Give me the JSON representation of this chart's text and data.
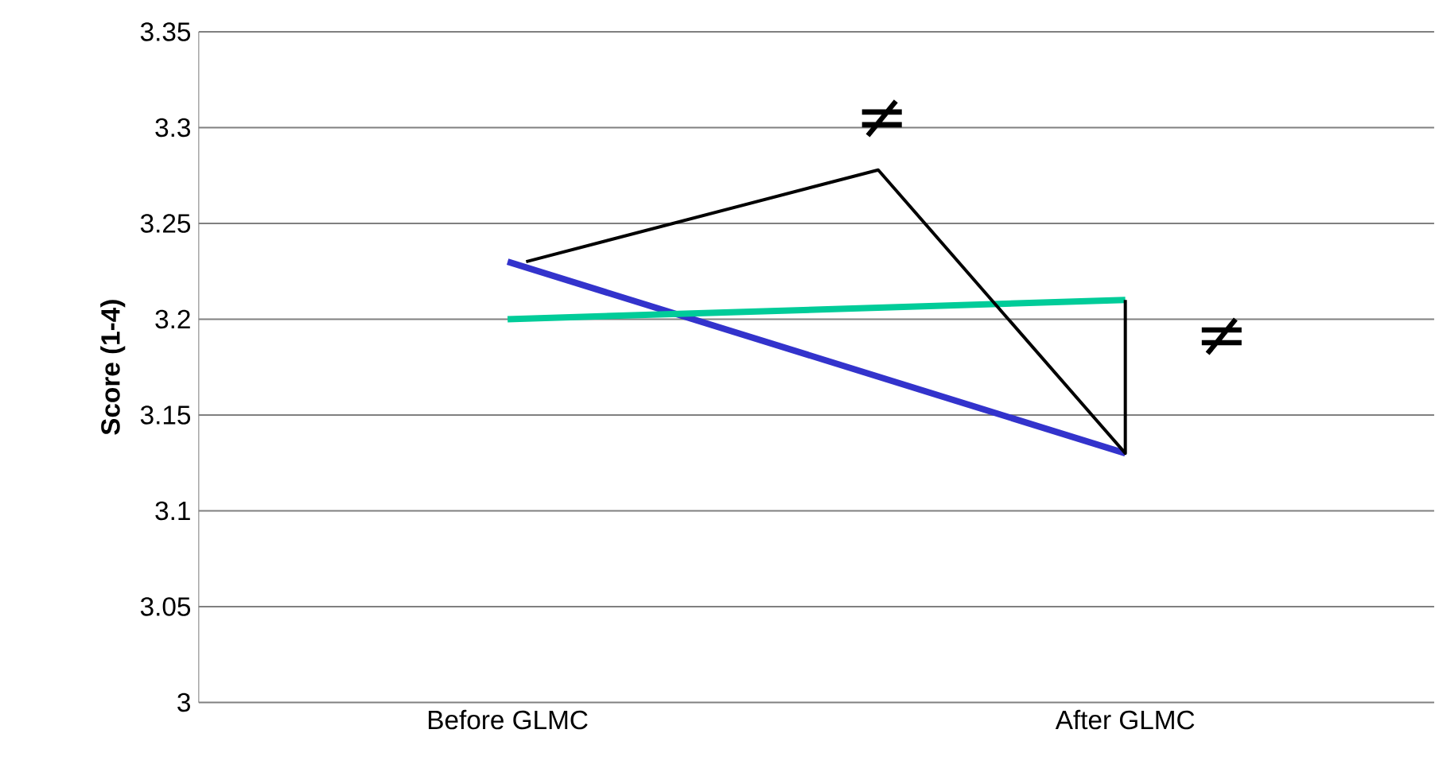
{
  "chart_data": {
    "type": "line",
    "ylabel": "Score (1-4)",
    "categories": [
      "Before GLMC",
      "After GLMC"
    ],
    "series": [
      {
        "color": "#3333cc",
        "values": [
          3.23,
          3.13
        ]
      },
      {
        "color": "#00cc99",
        "values": [
          3.2,
          3.21
        ]
      }
    ],
    "ylim": [
      3,
      3.35
    ],
    "yticks": [
      3,
      3.05,
      3.1,
      3.15,
      3.2,
      3.25,
      3.3,
      3.35
    ],
    "grid": "y",
    "marker": "none",
    "line_style": "solid",
    "annotations": [
      "≠",
      "≠"
    ]
  }
}
